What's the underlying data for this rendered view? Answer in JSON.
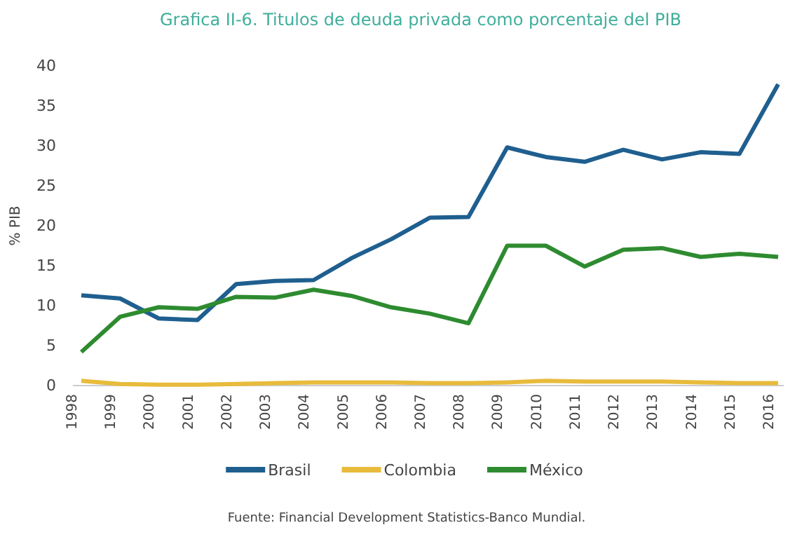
{
  "chart_data": {
    "type": "line",
    "title": "Grafica II-6. Titulos de deuda privada como porcentaje del PIB",
    "ylabel": "% PIB",
    "categories": [
      "1998",
      "1999",
      "2000",
      "2001",
      "2002",
      "2003",
      "2004",
      "2005",
      "2006",
      "2007",
      "2008",
      "2009",
      "2010",
      "2011",
      "2012",
      "2013",
      "2014",
      "2015",
      "2016"
    ],
    "series": [
      {
        "name": "Brasil",
        "color": "#1f5f8f",
        "values": [
          11.3,
          10.9,
          8.4,
          8.2,
          12.7,
          13.1,
          13.2,
          16,
          18.3,
          21,
          21.1,
          29.8,
          28.6,
          28,
          29.5,
          28.3,
          29.2,
          29,
          37.7
        ]
      },
      {
        "name": "Colombia",
        "color": "#e8bb3c",
        "values": [
          0.6,
          0.2,
          0.1,
          0.1,
          0.2,
          0.3,
          0.4,
          0.4,
          0.4,
          0.3,
          0.3,
          0.4,
          0.6,
          0.5,
          0.5,
          0.5,
          0.4,
          0.3,
          0.3
        ]
      },
      {
        "name": "México",
        "color": "#2e8b30",
        "values": [
          4.2,
          8.6,
          9.8,
          9.6,
          11.1,
          11,
          12,
          11.2,
          9.8,
          9,
          7.8,
          17.5,
          17.5,
          14.9,
          17,
          17.2,
          16.1,
          16.5,
          16.1
        ]
      }
    ],
    "ylim": [
      0,
      40
    ],
    "yticks": [
      0,
      5,
      10,
      15,
      20,
      25,
      30,
      35,
      40
    ],
    "grid": false,
    "legend": "bottom",
    "marker": "none",
    "line_style": "solid",
    "annotations": [
      "Fuente: Financial Development Statistics-Banco Mundial."
    ]
  }
}
